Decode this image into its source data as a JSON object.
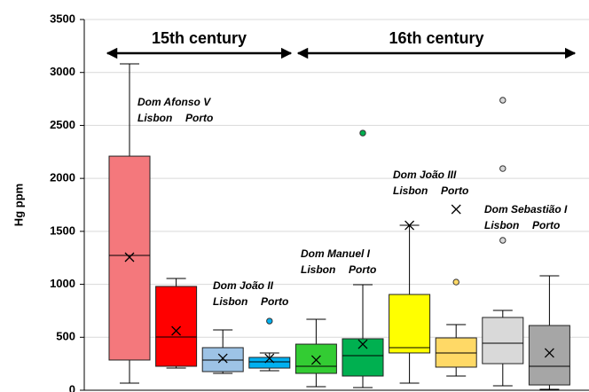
{
  "chart_data": {
    "type": "box",
    "y_label": "Hg ppm",
    "ylim": [
      0,
      3500
    ],
    "yticks": [
      0,
      500,
      1000,
      1500,
      2000,
      2500,
      3000,
      3500
    ],
    "grid": true,
    "periods": [
      {
        "label": "15th century"
      },
      {
        "label": "16th century"
      }
    ],
    "reigns": [
      {
        "name": "Dom Afonso V",
        "labels": [
          "Lisbon",
          "Porto"
        ]
      },
      {
        "name": "Dom João II",
        "labels": [
          "Lisbon",
          "Porto"
        ]
      },
      {
        "name": "Dom Manuel I",
        "labels": [
          "Lisbon",
          "Porto"
        ]
      },
      {
        "name": "Dom João III",
        "labels": [
          "Lisbon",
          "Porto"
        ]
      },
      {
        "name": "Dom Sebastião I",
        "labels": [
          "Lisbon",
          "Porto"
        ]
      }
    ],
    "boxes": [
      {
        "color": "#f4787c",
        "min": 67,
        "q1": 285,
        "median": 1273,
        "q3": 2210,
        "max": 3081,
        "mean": 1256,
        "outliers": []
      },
      {
        "color": "#ff0000",
        "min": 209,
        "q1": 226,
        "median": 502,
        "q3": 980,
        "max": 1055,
        "mean": 561,
        "outliers": []
      },
      {
        "color": "#9dc3e6",
        "min": 159,
        "q1": 176,
        "median": 285,
        "q3": 402,
        "max": 569,
        "mean": 301,
        "outliers": []
      },
      {
        "color": "#00b0f0",
        "min": 184,
        "q1": 209,
        "median": 268,
        "q3": 310,
        "max": 352,
        "mean": 301,
        "outliers": [
          653
        ]
      },
      {
        "color": "#33cc33",
        "min": 33,
        "q1": 159,
        "median": 226,
        "q3": 435,
        "max": 670,
        "mean": 285,
        "outliers": []
      },
      {
        "color": "#00b050",
        "min": 25,
        "q1": 134,
        "median": 327,
        "q3": 486,
        "max": 996,
        "mean": 435,
        "outliers": [
          2428
        ]
      },
      {
        "color": "#ffff00",
        "min": 67,
        "q1": 352,
        "median": 402,
        "q3": 904,
        "max": 1557,
        "mean": 1557,
        "outliers": []
      },
      {
        "color": "#ffd966",
        "min": 134,
        "q1": 218,
        "median": 352,
        "q3": 494,
        "max": 620,
        "mean": 1708,
        "outliers": [
          1021
        ]
      },
      {
        "color": "#d9d9d9",
        "min": 42,
        "q1": 251,
        "median": 444,
        "q3": 687,
        "max": 754,
        "outliers": [
          1415,
          2093,
          2738
        ]
      },
      {
        "color": "#a6a6a6",
        "min": 8,
        "q1": 50,
        "median": 226,
        "q3": 611,
        "max": 1080,
        "mean": 352,
        "outliers": []
      }
    ]
  }
}
